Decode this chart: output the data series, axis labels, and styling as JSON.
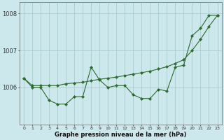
{
  "x": [
    0,
    1,
    2,
    3,
    4,
    5,
    6,
    7,
    8,
    9,
    10,
    11,
    12,
    13,
    14,
    15,
    16,
    17,
    18,
    19,
    20,
    21,
    22,
    23
  ],
  "line_wavy": [
    1006.25,
    1006.0,
    1006.0,
    1005.65,
    1005.55,
    1005.55,
    1005.75,
    1005.75,
    1006.55,
    1006.2,
    1006.0,
    1006.05,
    1006.05,
    1005.8,
    1005.7,
    1005.7,
    1005.95,
    1005.9,
    1006.55,
    1006.6,
    1007.4,
    1007.6,
    1007.95,
    1007.95
  ],
  "line_trend": [
    1006.25,
    1006.05,
    1006.05,
    1006.05,
    1006.05,
    1006.1,
    1006.12,
    1006.14,
    1006.18,
    1006.22,
    1006.25,
    1006.28,
    1006.32,
    1006.36,
    1006.4,
    1006.44,
    1006.5,
    1006.56,
    1006.65,
    1006.75,
    1007.0,
    1007.3,
    1007.65,
    1007.95
  ],
  "bg_color": "#cce8ec",
  "grid_color": "#aacccc",
  "line_color": "#2d6a2d",
  "xlabel": "Graphe pression niveau de la mer (hPa)",
  "ylim": [
    1005.0,
    1008.3
  ],
  "yticks": [
    1006,
    1007,
    1008
  ],
  "xticks": [
    0,
    1,
    2,
    3,
    4,
    5,
    6,
    7,
    8,
    9,
    10,
    11,
    12,
    13,
    14,
    15,
    16,
    17,
    18,
    19,
    20,
    21,
    22,
    23
  ]
}
